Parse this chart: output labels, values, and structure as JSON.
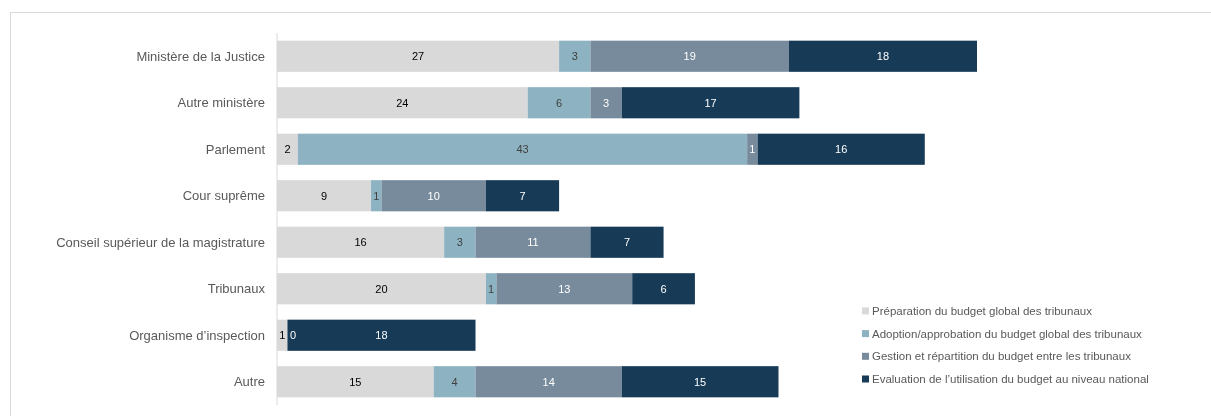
{
  "chart_data": {
    "type": "bar",
    "orientation": "horizontal",
    "stacked": true,
    "legend": "bottom right",
    "categories": [
      "Ministère de la Justice",
      "Autre ministère",
      "Parlement",
      "Cour suprême",
      "Conseil supérieur de la magistrature",
      "Tribunaux",
      "Organisme d’inspection",
      "Autre"
    ],
    "series": [
      {
        "name": "Préparation du budget global des tribunaux",
        "color": "#d9d9d9",
        "values": [
          27,
          24,
          2,
          9,
          16,
          20,
          1,
          15
        ],
        "value_labels": [
          "27",
          "24",
          "2",
          "9",
          "16",
          "20",
          "1",
          "15"
        ]
      },
      {
        "name": "Adoption/approbation du budget global des tribunaux",
        "color": "#8db3c2",
        "values": [
          3,
          6,
          43,
          1,
          3,
          1,
          null,
          4
        ],
        "value_labels": [
          "3",
          "6",
          "43",
          "1",
          "3",
          "1",
          null,
          "4"
        ]
      },
      {
        "name": "Gestion et répartition du budget entre les tribunaux",
        "color": "#778b9c",
        "values": [
          19,
          3,
          1,
          10,
          11,
          13,
          0,
          14
        ],
        "value_labels": [
          "19",
          "3",
          "1",
          "10",
          "11",
          "13",
          null,
          "14"
        ]
      },
      {
        "name": "Evaluation de l’utilisation du budget au niveau national",
        "color": "#173a56",
        "values": [
          18,
          17,
          16,
          7,
          7,
          6,
          18,
          15
        ],
        "value_labels": [
          "18",
          "17",
          "16",
          "7",
          "7",
          "6",
          "18",
          "15"
        ]
      }
    ],
    "annotations": [
      {
        "text": "0",
        "x": 1,
        "y": "Organisme d’inspection"
      }
    ]
  }
}
